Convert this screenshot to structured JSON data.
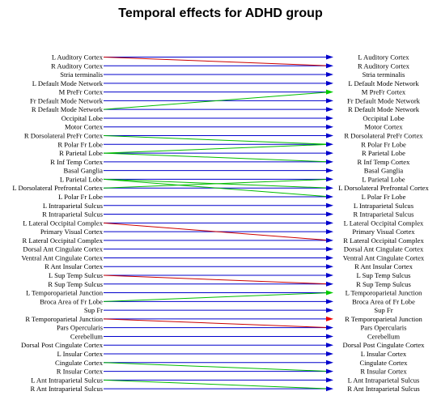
{
  "title": "Temporal effects for ADHD group",
  "colors": {
    "arrow": "#0000cc",
    "edge_red": "#cc0000",
    "edge_green": "#00bb00",
    "emph_green": "#00cc00",
    "emph_red": "#ee0000"
  },
  "regions": [
    "L Auditory Cortex",
    "R Auditory Cortex",
    "Stria terminalis",
    "L Default Mode Network",
    "M PreFr Cortex",
    "Fr Default Mode Network",
    "R Default Mode Network",
    "Occipital Lobe",
    "Motor Cortex",
    "R Dorsolateral PreFr Cortex",
    "R Polar Fr Lobe",
    "R Parietal Lobe",
    "R Inf Temp Cortex",
    "Basal Ganglia",
    "L Parietal Lobe",
    "L Dorsolateral Prefrontal Cortex",
    "L Polar Fr Lobe",
    "L Intraparietal Sulcus",
    "R Intraparietal Sulcus",
    "L Lateral Occipital Complex",
    "Primary Visual Cortex",
    "R Lateral Occipital Complex",
    "Dorsal Ant Cingulate Cortex",
    "Ventral Ant Cingulate Cortex",
    "R Ant Insular Cortex",
    "L Sup Temp Sulcus",
    "R Sup Temp Sulcus",
    "L Temporoparietal Junction",
    "Broca Area of Fr Lobe",
    "Sup Fr",
    "R Temporoparietal Junction",
    "Pars Opercularis",
    "Cerebellum",
    "Dorsal Post Cingulate Cortex",
    "L Insular Cortex",
    "Cingulate Cortex",
    "R Insular Cortex",
    "L Ant Intraparietal Sulcus",
    "R Ant Intraparietal Sulcus"
  ],
  "cross_edges": [
    {
      "from": 0,
      "to": 1,
      "color": "red"
    },
    {
      "from": 6,
      "to": 4,
      "color": "green"
    },
    {
      "from": 9,
      "to": 10,
      "color": "green"
    },
    {
      "from": 11,
      "to": 10,
      "color": "green"
    },
    {
      "from": 11,
      "to": 12,
      "color": "green"
    },
    {
      "from": 14,
      "to": 15,
      "color": "green"
    },
    {
      "from": 14,
      "to": 16,
      "color": "green"
    },
    {
      "from": 15,
      "to": 14,
      "color": "green"
    },
    {
      "from": 19,
      "to": 21,
      "color": "red"
    },
    {
      "from": 25,
      "to": 26,
      "color": "red"
    },
    {
      "from": 28,
      "to": 27,
      "color": "green"
    },
    {
      "from": 30,
      "to": 31,
      "color": "red"
    },
    {
      "from": 35,
      "to": 36,
      "color": "green"
    },
    {
      "from": 37,
      "to": 38,
      "color": "green"
    }
  ],
  "emphasized_arrowheads": [
    {
      "row": 4,
      "color": "green"
    },
    {
      "row": 27,
      "color": "green"
    },
    {
      "row": 30,
      "color": "red"
    }
  ]
}
